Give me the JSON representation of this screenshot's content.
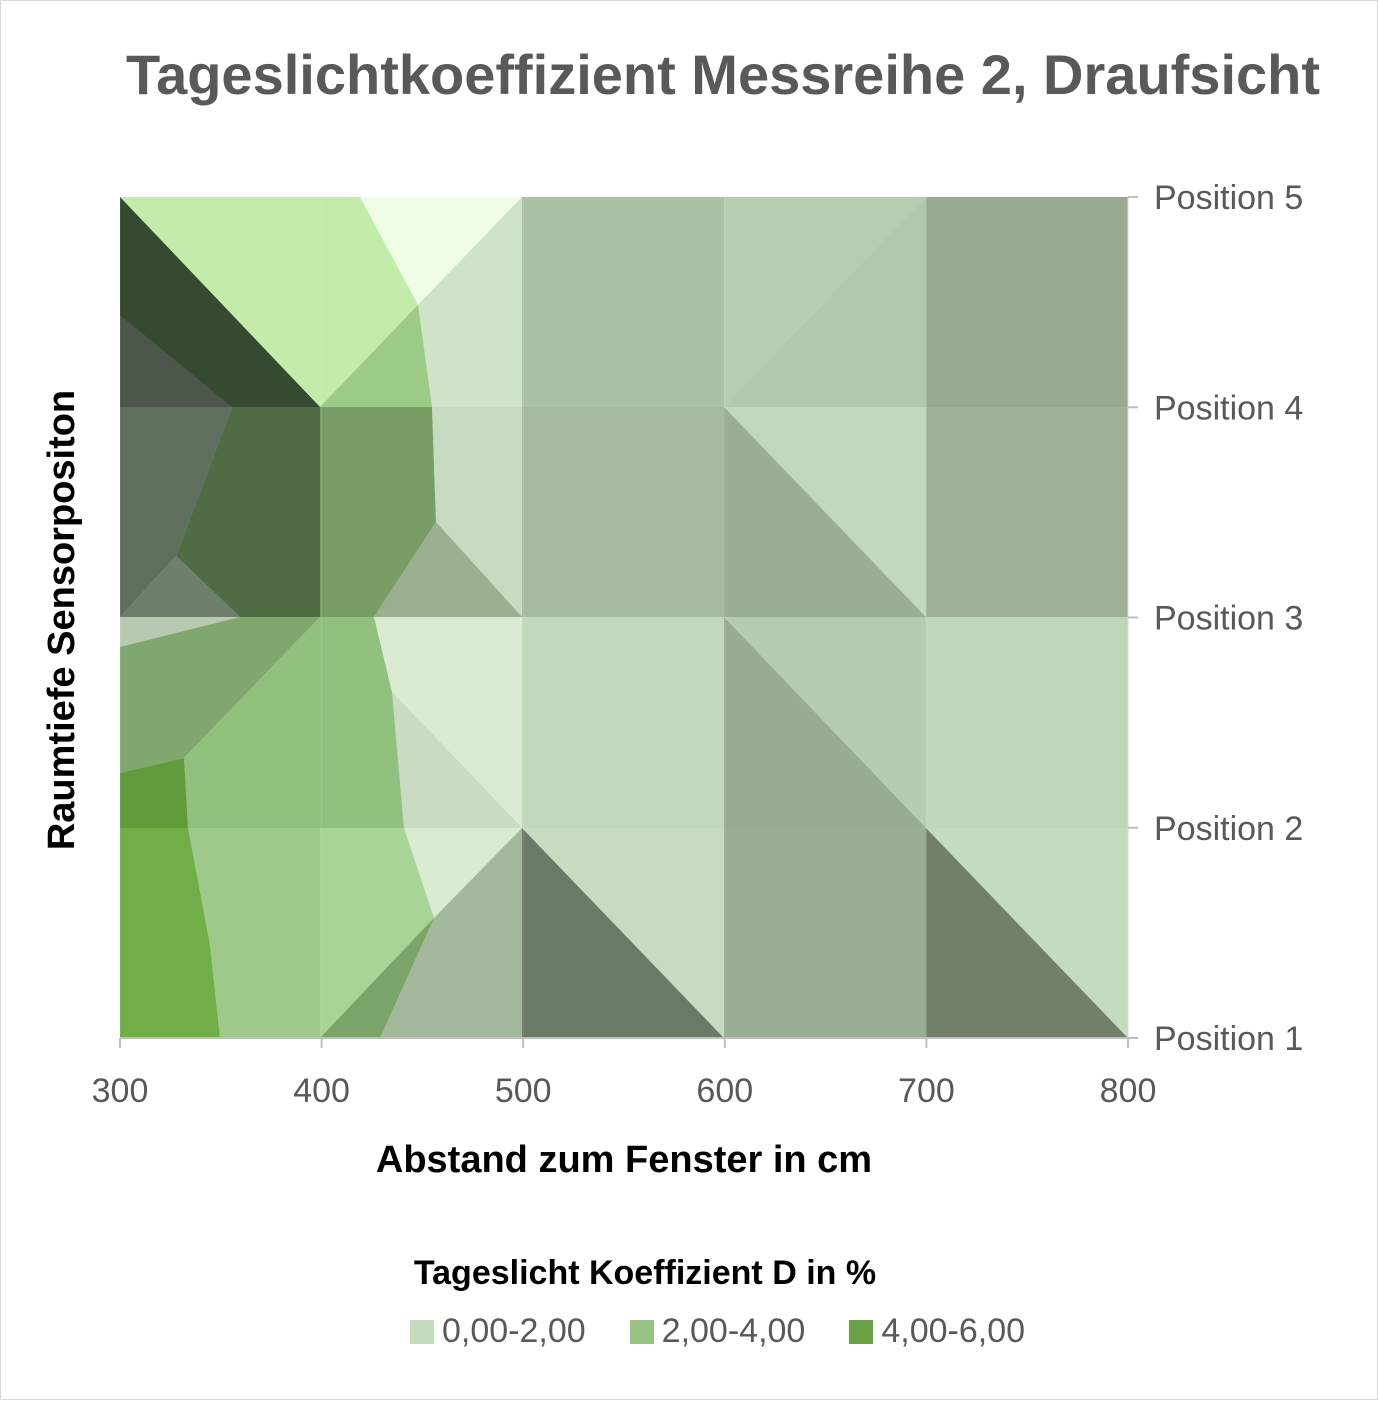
{
  "title": "Tageslichtkoeffizient Messreihe 2, Draufsicht",
  "chart_data": {
    "type": "heatmap",
    "title": "Tageslichtkoeffizient Messreihe 2, Draufsicht",
    "xlabel": "Abstand zum Fenster in cm",
    "ylabel": "Raumtiefe Sensorpositon",
    "x": [
      300,
      400,
      500,
      600,
      700,
      800
    ],
    "y_categories": [
      "Position 1",
      "Position 2",
      "Position 3",
      "Position 4",
      "Position 5"
    ],
    "x_tick_labels": [
      "300",
      "400",
      "500",
      "600",
      "700",
      "800"
    ],
    "legend_title": "Tageslicht Koeffizient D in %",
    "series": [
      {
        "name": "0,00-2,00",
        "color": "#c5dbbe"
      },
      {
        "name": "2,00-4,00",
        "color": "#97c384"
      },
      {
        "name": "4,00-6,00",
        "color": "#69a345"
      }
    ],
    "legend_position": "bottom",
    "grid": false,
    "surface_colors": {
      "rows": [
        "Position 5 -> Position 4",
        "Position 4 -> Position 3",
        "Position 3 -> Position 2",
        "Position 2 -> Position 1"
      ],
      "note_cols": [
        "300-400",
        "400-500",
        "500-600",
        "600-700",
        "700-800"
      ]
    }
  }
}
